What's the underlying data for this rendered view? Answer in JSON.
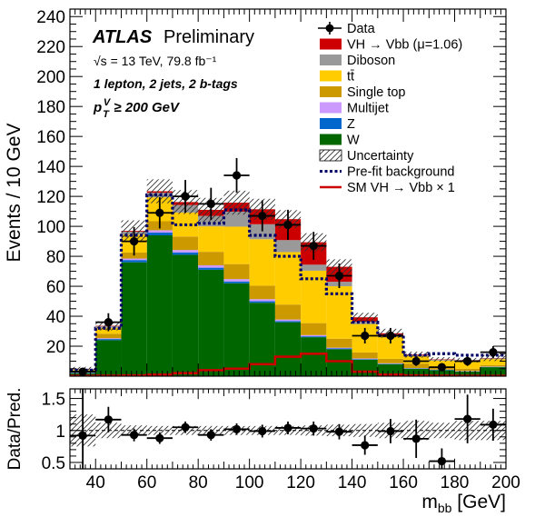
{
  "chart_data": {
    "type": "bar",
    "title": "ATLAS Preliminary",
    "experiment": "ATLAS",
    "status": "Preliminary",
    "energy_label": "√s = 13 TeV, 79.8 fb⁻¹",
    "region_label": "1 lepton, 2 jets, 2 b-tags",
    "cut_label": "pTV ≥ 200 GeV",
    "cut_symbol": "p",
    "cut_sub": "T",
    "cut_sup": "V",
    "cut_rest": " ≥ 200 GeV",
    "xlabel": "m",
    "xlabel_sub": "bb",
    "xlabel_unit": " [GeV]",
    "ylabel": "Events / 10 GeV",
    "ratio_ylabel": "Data/Pred.",
    "xlim": [
      30,
      200
    ],
    "ylim": [
      0,
      245
    ],
    "ratio_ylim": [
      0.4,
      1.65
    ],
    "x_ticks": [
      40,
      60,
      80,
      100,
      120,
      140,
      160,
      180,
      200
    ],
    "y_ticks": [
      20,
      40,
      60,
      80,
      100,
      120,
      140,
      160,
      180,
      200,
      220,
      240
    ],
    "ratio_ticks": [
      0.5,
      1,
      1.5
    ],
    "bin_edges": [
      30,
      40,
      50,
      60,
      70,
      80,
      90,
      100,
      110,
      120,
      130,
      140,
      150,
      160,
      170,
      180,
      190,
      200
    ],
    "series": [
      {
        "name": "W",
        "label": "W",
        "color": "#006600",
        "values": [
          2,
          24,
          76,
          94,
          81,
          71,
          62,
          49,
          36,
          26,
          18,
          11,
          8,
          5,
          4,
          3,
          6
        ]
      },
      {
        "name": "Z",
        "label": "Z",
        "color": "#0066cc",
        "values": [
          0.3,
          0.8,
          1.5,
          1.8,
          1.6,
          1.4,
          1.2,
          1,
          0.8,
          0.6,
          0.5,
          0.4,
          0.3,
          0.2,
          0.2,
          0.2,
          0.2
        ]
      },
      {
        "name": "Multijet",
        "label": "Multijet",
        "color": "#cc99ff",
        "values": [
          0.2,
          0.5,
          1,
          1.6,
          1.6,
          1.6,
          1.6,
          1.4,
          1,
          0.8,
          0.5,
          0.4,
          0.3,
          0.2,
          0.2,
          0.2,
          0.2
        ]
      },
      {
        "name": "Single top",
        "label": "Single top",
        "color": "#cc9900",
        "values": [
          0.5,
          3,
          4,
          6,
          9,
          9,
          10,
          9,
          10,
          8,
          6,
          4,
          3,
          3,
          2,
          1.6,
          1
        ]
      },
      {
        "name": "ttbar",
        "label": "tt̄",
        "color": "#ffcc00",
        "values": [
          1,
          4,
          12,
          16,
          16,
          17,
          25,
          31,
          35,
          35,
          35,
          19,
          15,
          5,
          4,
          5,
          4
        ]
      },
      {
        "name": "Diboson",
        "label": "Diboson",
        "color": "#999999",
        "values": [
          0.5,
          1,
          2,
          3,
          5,
          7,
          10,
          10,
          8,
          4,
          3,
          1.5,
          1,
          0.5,
          0.5,
          0.5,
          0.5
        ]
      },
      {
        "name": "VH",
        "label": "VH → Vbb (μ=1.06)",
        "color": "#cc0000",
        "values": [
          0.2,
          0.3,
          0.5,
          1,
          2,
          4,
          6,
          10,
          14,
          15,
          10,
          3,
          1,
          0.5,
          0.3,
          0.2,
          0.2
        ]
      }
    ],
    "uncertainty": {
      "label": "Uncertainty",
      "values": [
        1.5,
        3,
        7,
        8,
        8,
        8,
        8,
        7,
        6,
        6,
        5,
        3,
        3,
        2,
        1.5,
        1.5,
        2
      ]
    },
    "prefit_background": {
      "label": "Pre-fit background",
      "color": "#000066",
      "values": [
        4,
        32,
        94,
        121,
        101,
        102,
        111,
        94,
        80,
        65,
        55,
        36,
        27,
        14,
        15,
        14,
        14
      ]
    },
    "sm_signal": {
      "label": "SM VH → Vbb × 1",
      "color": "#cc0000",
      "values": [
        0.2,
        0.3,
        0.5,
        1,
        2,
        4,
        5,
        8,
        13,
        15,
        10,
        3,
        1,
        0.5,
        0.3,
        0.2,
        0.2
      ]
    },
    "data": {
      "label": "Data",
      "values": [
        3,
        36,
        90,
        109,
        120,
        115,
        134,
        107,
        101,
        87,
        67,
        27,
        27,
        10,
        6,
        10,
        16
      ]
    },
    "ratio": {
      "values": [
        0.92,
        1.17,
        0.93,
        0.88,
        1.05,
        0.93,
        1.02,
        0.99,
        1.04,
        1.03,
        0.98,
        0.77,
        0.99,
        0.87,
        0.52,
        1.18,
        1.09
      ],
      "errors": [
        0.95,
        0.2,
        0.1,
        0.09,
        0.09,
        0.09,
        0.09,
        0.1,
        0.1,
        0.11,
        0.12,
        0.15,
        0.19,
        0.3,
        0.2,
        0.38,
        0.25
      ],
      "band": [
        0.25,
        0.12,
        0.08,
        0.07,
        0.07,
        0.07,
        0.07,
        0.07,
        0.07,
        0.08,
        0.09,
        0.1,
        0.12,
        0.15,
        0.12,
        0.15,
        0.15
      ]
    }
  }
}
